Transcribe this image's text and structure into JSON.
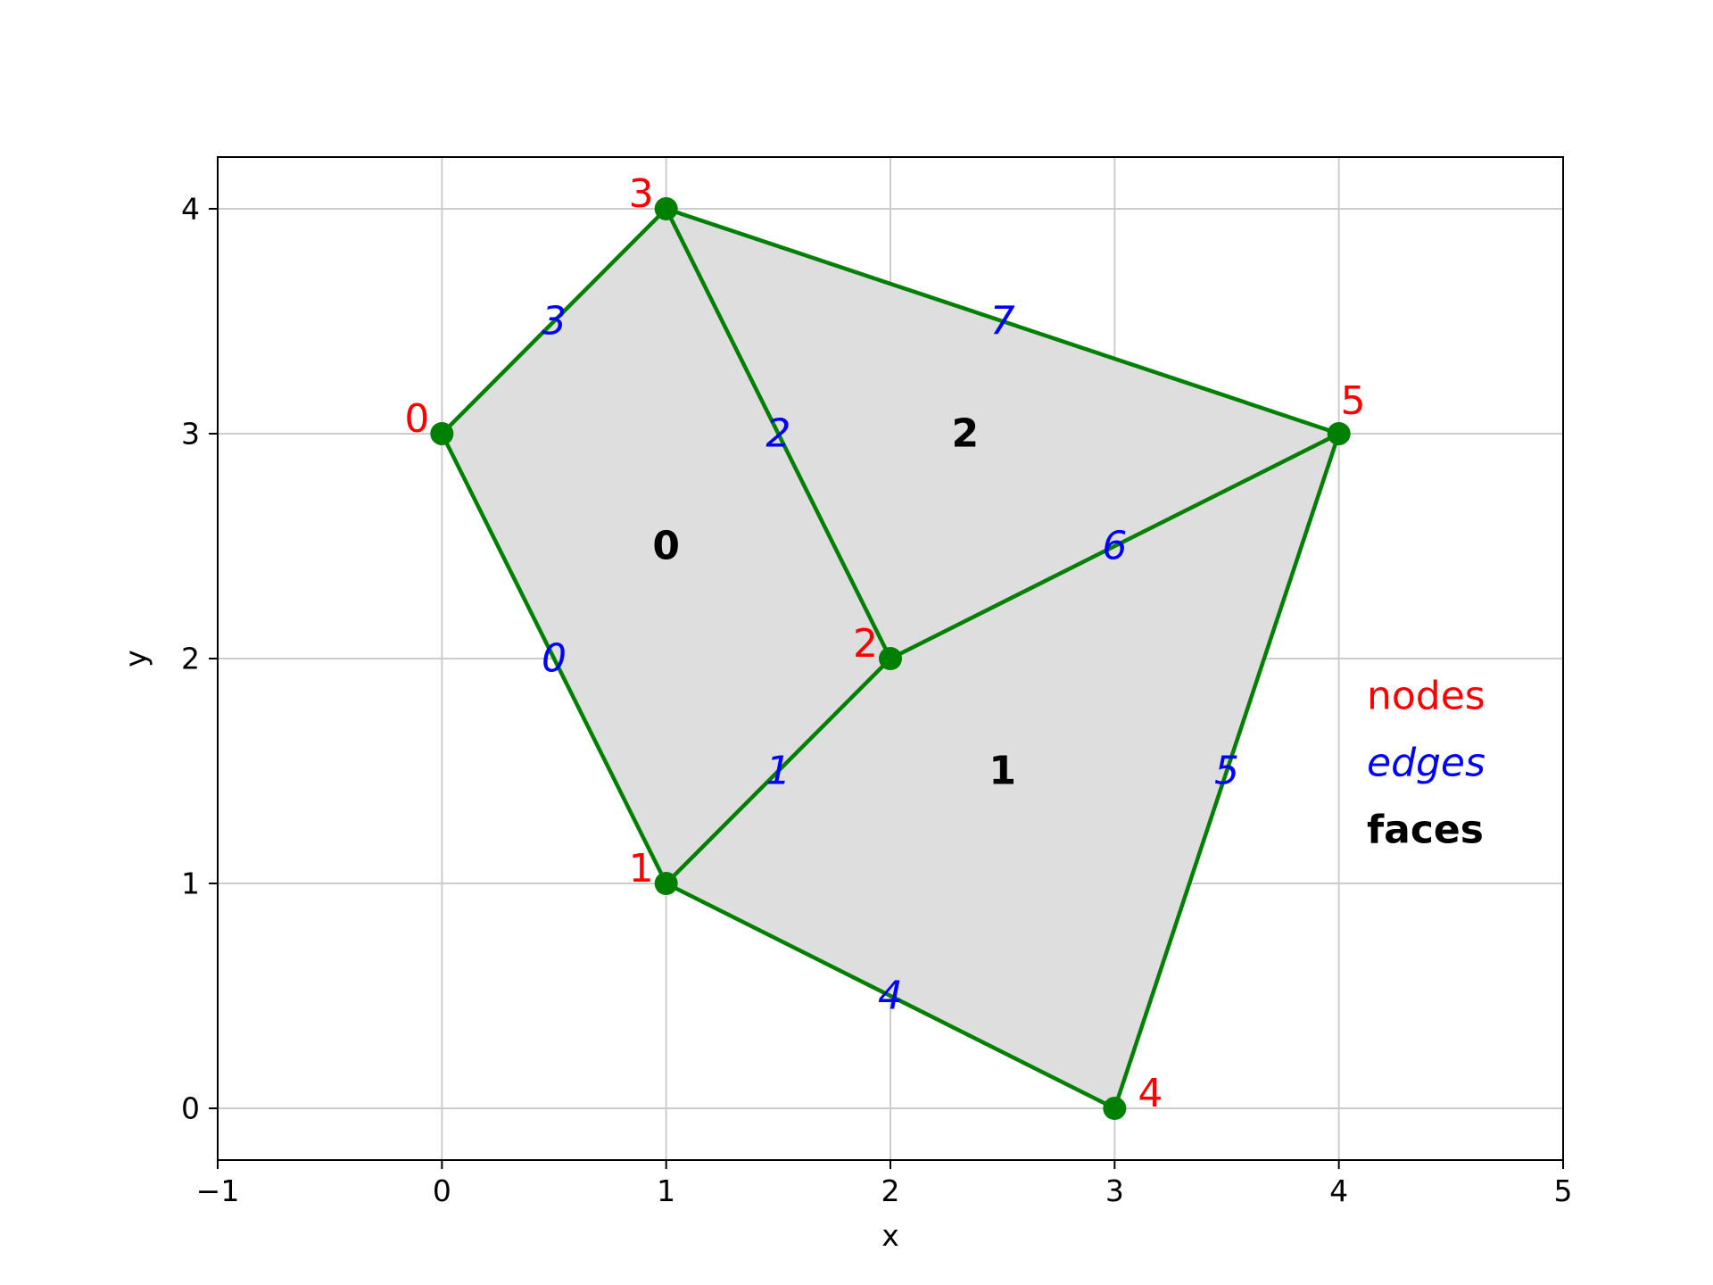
{
  "chart_data": {
    "type": "mesh",
    "xlabel": "x",
    "ylabel": "y",
    "xlim": [
      -1,
      5
    ],
    "ylim": [
      -0.23,
      4.23
    ],
    "xticks": [
      -1,
      0,
      1,
      2,
      3,
      4,
      5
    ],
    "yticks": [
      0,
      1,
      2,
      3,
      4
    ],
    "xtick_labels": [
      "−1",
      "0",
      "1",
      "2",
      "3",
      "4",
      "5"
    ],
    "ytick_labels": [
      "0",
      "1",
      "2",
      "3",
      "4"
    ],
    "grid": true,
    "nodes": [
      {
        "id": "0",
        "x": 0,
        "y": 3
      },
      {
        "id": "1",
        "x": 1,
        "y": 1
      },
      {
        "id": "2",
        "x": 2,
        "y": 2
      },
      {
        "id": "3",
        "x": 1,
        "y": 4
      },
      {
        "id": "4",
        "x": 3,
        "y": 0
      },
      {
        "id": "5",
        "x": 4,
        "y": 3
      }
    ],
    "edges": [
      {
        "id": "0",
        "nodes": [
          0,
          1
        ]
      },
      {
        "id": "1",
        "nodes": [
          1,
          2
        ]
      },
      {
        "id": "2",
        "nodes": [
          2,
          3
        ]
      },
      {
        "id": "3",
        "nodes": [
          3,
          0
        ]
      },
      {
        "id": "4",
        "nodes": [
          1,
          4
        ]
      },
      {
        "id": "5",
        "nodes": [
          4,
          5
        ]
      },
      {
        "id": "6",
        "nodes": [
          5,
          2
        ]
      },
      {
        "id": "7",
        "nodes": [
          5,
          3
        ]
      }
    ],
    "faces": [
      {
        "id": "0",
        "nodes": [
          0,
          1,
          2,
          3
        ]
      },
      {
        "id": "1",
        "nodes": [
          1,
          4,
          5,
          2
        ]
      },
      {
        "id": "2",
        "nodes": [
          3,
          2,
          5
        ]
      }
    ],
    "legend": {
      "position": "right",
      "entries": [
        {
          "label": "nodes",
          "color": "#ff0000",
          "style": "normal"
        },
        {
          "label": "edges",
          "color": "#0000ff",
          "style": "italic"
        },
        {
          "label": "faces",
          "color": "#000000",
          "style": "bold"
        }
      ]
    },
    "colors": {
      "edge": "#008000",
      "node": "#008000",
      "face_fill": "#dedede",
      "node_label": "#ff0000",
      "edge_label": "#0000ff",
      "face_label": "#000000",
      "grid": "#cccccc"
    }
  }
}
